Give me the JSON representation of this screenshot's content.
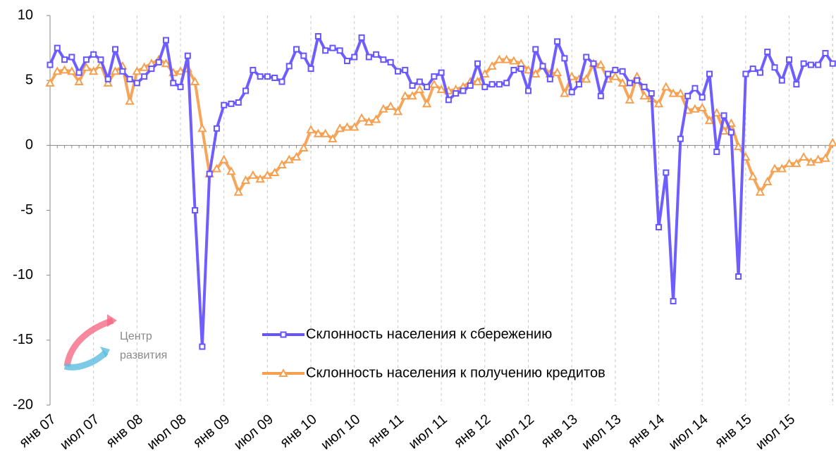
{
  "chart_data": {
    "type": "line",
    "categories": [
      "янв 07",
      null,
      null,
      null,
      null,
      null,
      "июл 07",
      null,
      null,
      null,
      null,
      null,
      "янв 08",
      null,
      null,
      null,
      null,
      null,
      "июл 08",
      null,
      null,
      null,
      null,
      null,
      "янв 09",
      null,
      null,
      null,
      null,
      null,
      "июл 09",
      null,
      null,
      null,
      null,
      null,
      "янв 10",
      null,
      null,
      null,
      null,
      null,
      "июл 10",
      null,
      null,
      null,
      null,
      null,
      "янв 11",
      null,
      null,
      null,
      null,
      null,
      "июл 11",
      null,
      null,
      null,
      null,
      null,
      "янв 12",
      null,
      null,
      null,
      null,
      null,
      "июл 12",
      null,
      null,
      null,
      null,
      null,
      "янв 13",
      null,
      null,
      null,
      null,
      null,
      "июл 13",
      null,
      null,
      null,
      null,
      null,
      "янв 14",
      null,
      null,
      null,
      null,
      null,
      "июл 14",
      null,
      null,
      null,
      null,
      null,
      "янв 15",
      null,
      null,
      null,
      null,
      null,
      "июл 15",
      null,
      null,
      null,
      null,
      null,
      null
    ],
    "series": [
      {
        "name": "Склонность населения к сбережению",
        "color": "#6655ff",
        "marker": "square",
        "values": [
          6.2,
          7.5,
          6.6,
          6.8,
          5.6,
          6.6,
          7.0,
          6.6,
          5.1,
          7.4,
          5.7,
          5.1,
          4.8,
          5.3,
          5.9,
          6.4,
          8.1,
          4.8,
          4.5,
          6.9,
          -5.0,
          -15.5,
          -2.2,
          1.3,
          3.1,
          3.2,
          3.3,
          4.2,
          5.8,
          5.3,
          5.3,
          5.2,
          4.9,
          6.1,
          7.4,
          6.9,
          5.9,
          8.4,
          7.3,
          7.5,
          7.3,
          6.5,
          6.8,
          8.3,
          6.8,
          7.0,
          6.6,
          6.4,
          5.7,
          5.8,
          4.6,
          4.9,
          4.5,
          5.3,
          5.6,
          3.5,
          4.0,
          4.2,
          4.6,
          6.3,
          4.5,
          4.7,
          4.7,
          4.8,
          5.8,
          5.9,
          4.2,
          7.4,
          6.1,
          5.1,
          8.0,
          6.7,
          4.1,
          4.7,
          6.8,
          6.3,
          3.8,
          5.5,
          5.8,
          5.7,
          4.8,
          5.0,
          4.5,
          4.0,
          -6.3,
          -2.1,
          -12.0,
          0.5,
          3.8,
          4.4,
          3.7,
          5.5,
          -0.5,
          2.3,
          1.0,
          -10.1,
          5.5,
          5.9,
          5.6,
          7.2,
          6.0,
          5.0,
          6.6,
          4.7,
          6.3,
          6.2,
          6.2,
          7.1,
          6.3
        ]
      },
      {
        "name": "Склонность населения к получению кредитов",
        "color": "#f5a050",
        "marker": "triangle",
        "values": [
          4.8,
          5.7,
          5.8,
          5.7,
          4.9,
          6.0,
          5.7,
          6.2,
          4.8,
          5.7,
          6.1,
          3.4,
          5.7,
          6.0,
          6.3,
          6.6,
          6.3,
          5.6,
          5.7,
          5.9,
          4.9,
          1.3,
          -2.2,
          -1.8,
          -1.1,
          -2.0,
          -3.6,
          -2.7,
          -2.3,
          -2.6,
          -2.3,
          -2.1,
          -1.5,
          -1.1,
          -0.9,
          -0.2,
          1.2,
          0.9,
          0.9,
          0.5,
          1.3,
          1.4,
          1.4,
          2.1,
          1.8,
          2.0,
          2.8,
          3.0,
          2.6,
          3.8,
          3.8,
          4.3,
          3.2,
          4.7,
          4.3,
          4.2,
          4.3,
          4.5,
          4.9,
          4.9,
          5.5,
          6.1,
          6.6,
          6.6,
          6.5,
          6.3,
          5.8,
          5.5,
          6.1,
          5.5,
          5.6,
          4.0,
          5.3,
          5.1,
          5.1,
          6.3,
          6.2,
          5.1,
          5.3,
          4.8,
          3.5,
          5.3,
          3.8,
          3.6,
          3.2,
          4.5,
          4.0,
          4.0,
          2.7,
          2.8,
          2.9,
          1.9,
          2.5,
          1.1,
          1.7,
          -0.1,
          -0.9,
          -2.4,
          -3.6,
          -2.8,
          -1.8,
          -1.8,
          -1.4,
          -1.4,
          -0.9,
          -1.3,
          -1.1,
          -1.0,
          0.2
        ]
      }
    ],
    "ylim": [
      -20,
      10
    ],
    "yticks": [
      10,
      5,
      0,
      -5,
      -10,
      -15,
      -20
    ],
    "grid": true,
    "watermark": [
      "Центр",
      "развития"
    ]
  }
}
